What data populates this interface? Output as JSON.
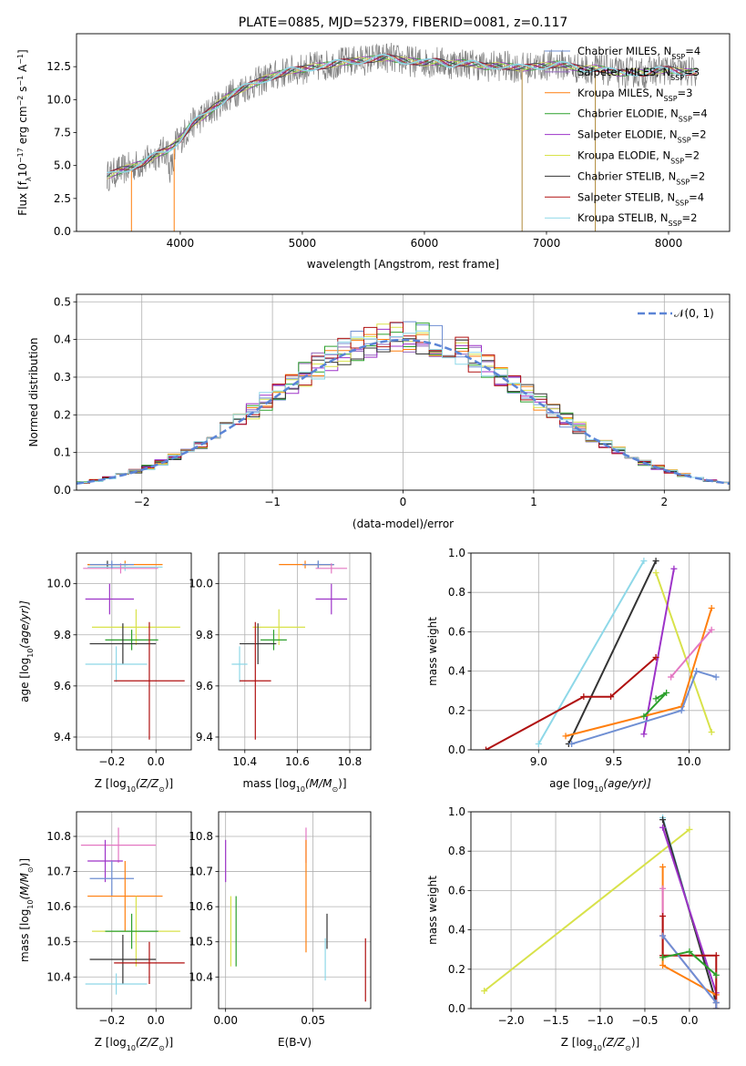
{
  "chart_data": [
    {
      "id": "spectrum",
      "type": "line",
      "title": "PLATE=0885, MJD=52379, FIBERID=0081, z=0.117",
      "xlabel": "wavelength [Angstrom, rest frame]",
      "ylabel": "Flux [f",
      "ylabel_sub": "λ",
      "ylabel_mid": "10",
      "ylabel_exp": "−17",
      "ylabel_end": " erg cm",
      "ylabel_end_exp": "−2",
      "ylabel_tail": " s",
      "ylabel_tail_exp": "−1",
      "ylabel_last": " A",
      "ylabel_last_exp": "−1",
      "ylabel_close": "]",
      "xlim": [
        3150,
        8500
      ],
      "ylim": [
        0,
        15
      ],
      "xticks": [
        4000,
        5000,
        6000,
        7000,
        8000
      ],
      "yticks": [
        0.0,
        2.5,
        5.0,
        7.5,
        10.0,
        12.5
      ],
      "continuum": {
        "x": [
          3400,
          3500,
          3600,
          3700,
          3800,
          3900,
          4000,
          4100,
          4200,
          4300,
          4400,
          4500,
          4600,
          4700,
          4800,
          4900,
          5000,
          5100,
          5200,
          5300,
          5400,
          5500,
          5600,
          5700,
          5800,
          5900,
          6000,
          6100,
          6200,
          6300,
          6400,
          6500,
          6600,
          6700,
          6800,
          6900,
          7000,
          7100,
          7200,
          7300,
          7400,
          7500,
          7600,
          7700,
          7800,
          7900,
          8000,
          8100,
          8230
        ],
        "y": [
          4.2,
          4.6,
          4.9,
          5.2,
          5.8,
          6.2,
          7.0,
          8.2,
          8.8,
          9.6,
          10.3,
          10.8,
          11.2,
          11.6,
          11.9,
          12.2,
          12.3,
          12.5,
          12.6,
          12.8,
          12.9,
          13.0,
          13.1,
          13.2,
          13.0,
          12.9,
          12.8,
          12.9,
          12.7,
          12.8,
          12.7,
          12.5,
          12.6,
          12.5,
          12.4,
          12.5,
          12.6,
          12.7,
          12.5,
          12.3,
          12.4,
          12.2,
          12.0,
          12.1,
          12.0,
          12.2,
          12.3,
          12.1,
          12.1
        ]
      },
      "legend_placement": "right",
      "legend": [
        {
          "label": "Chabrier MILES, N",
          "sub": "SSP",
          "tail": "=4",
          "color": "#6f8fd3"
        },
        {
          "label": "Salpeter MILES, N",
          "sub": "SSP",
          "tail": "=3",
          "color": "#9467bd"
        },
        {
          "label": "Kroupa MILES, N",
          "sub": "SSP",
          "tail": "=3",
          "color": "#ff7f0e"
        },
        {
          "label": "Chabrier ELODIE, N",
          "sub": "SSP",
          "tail": "=4",
          "color": "#2ca02c"
        },
        {
          "label": "Salpeter ELODIE, N",
          "sub": "SSP",
          "tail": "=2",
          "color": "#9d33c8"
        },
        {
          "label": "Kroupa ELODIE, N",
          "sub": "SSP",
          "tail": "=2",
          "color": "#d8e24a"
        },
        {
          "label": "Chabrier STELIB, N",
          "sub": "SSP",
          "tail": "=2",
          "color": "#333333"
        },
        {
          "label": "Salpeter STELIB, N",
          "sub": "SSP",
          "tail": "=4",
          "color": "#b01010"
        },
        {
          "label": "Kroupa STELIB, N",
          "sub": "SSP",
          "tail": "=2",
          "color": "#8ed8e8"
        }
      ]
    },
    {
      "id": "histogram",
      "type": "line",
      "xlabel": "(data-model)/error",
      "ylabel": "Normed distribution",
      "xlim": [
        -2.5,
        2.5
      ],
      "ylim": [
        0,
        0.52
      ],
      "xticks": [
        -2,
        -1,
        0,
        1,
        2
      ],
      "xtick_labels": [
        "−2",
        "−1",
        "0",
        "1",
        "2"
      ],
      "yticks": [
        0.0,
        0.1,
        0.2,
        0.3,
        0.4,
        0.5
      ],
      "ytick_labels": [
        "0.0",
        "0.1",
        "0.2",
        "0.3",
        "0.4",
        "0.5"
      ],
      "gaussian_label": "𝒩(0, 1)",
      "gaussian_color": "#5b84d6"
    },
    {
      "id": "age_vs_Z",
      "type": "scatter",
      "xlabel": "Z [log",
      "xlabel_sub": "10",
      "xlabel_tail": "(Z/Z",
      "xlabel_sun": "⊙",
      "xlabel_end": ")]",
      "ylabel": "age  [log",
      "ylabel_sub": "10",
      "ylabel_tail": "(age/yr)]",
      "xlim": [
        -0.36,
        0.16
      ],
      "ylim": [
        9.35,
        10.12
      ],
      "xticks": [
        -0.2,
        0.0
      ],
      "xtick_labels": [
        "−0.2",
        "0.0"
      ],
      "yticks": [
        9.4,
        9.6,
        9.8,
        10.0
      ],
      "ytick_labels": [
        "9.4",
        "9.6",
        "9.8",
        "10.0"
      ],
      "points": [
        {
          "x": -0.22,
          "y": 10.075,
          "xerr": 0.09,
          "yerr": 0.015,
          "color": "#333333"
        },
        {
          "x": -0.14,
          "y": 10.075,
          "xerr": 0.17,
          "yerr": 0.015,
          "color": "#ff7f0e"
        },
        {
          "x": -0.14,
          "y": 10.065,
          "xerr": 0.17,
          "yerr": 0.015,
          "color": "#8ed8e8"
        },
        {
          "x": -0.16,
          "y": 10.06,
          "xerr": 0.17,
          "yerr": 0.02,
          "color": "#e377c2"
        },
        {
          "x": -0.2,
          "y": 10.075,
          "xerr": 0.1,
          "yerr": 0.015,
          "color": "#6f8fd3"
        },
        {
          "x": -0.21,
          "y": 9.94,
          "xerr": 0.11,
          "yerr": 0.06,
          "color": "#9d33c8"
        },
        {
          "x": -0.09,
          "y": 9.83,
          "xerr": 0.2,
          "yerr": 0.07,
          "color": "#d8e24a"
        },
        {
          "x": -0.11,
          "y": 9.78,
          "xerr": 0.12,
          "yerr": 0.04,
          "color": "#2ca02c"
        },
        {
          "x": -0.15,
          "y": 9.765,
          "xerr": 0.15,
          "yerr": 0.08,
          "color": "#333333"
        },
        {
          "x": -0.18,
          "y": 9.685,
          "xerr": 0.14,
          "yerr": 0.07,
          "color": "#8ed8e8"
        },
        {
          "x": -0.03,
          "y": 9.62,
          "xerr": 0.16,
          "yerr": 0.23,
          "color": "#b01010"
        }
      ]
    },
    {
      "id": "age_vs_mass",
      "type": "scatter",
      "xlabel": "mass [log",
      "xlabel_sub": "10",
      "xlabel_tail": "(M/M",
      "xlabel_sun": "⊙",
      "xlabel_end": ")]",
      "xlim": [
        10.3,
        10.88
      ],
      "ylim": [
        9.35,
        10.12
      ],
      "xticks": [
        10.4,
        10.6,
        10.8
      ],
      "xtick_labels": [
        "10.4",
        "10.6",
        "10.8"
      ],
      "yticks": [
        9.4,
        9.6,
        9.8,
        10.0
      ],
      "ytick_labels": [
        "9.4",
        "9.6",
        "9.8",
        "10.0"
      ],
      "points": [
        {
          "x": 10.68,
          "y": 10.075,
          "xerr": 0.06,
          "yerr": 0.015,
          "color": "#333333"
        },
        {
          "x": 10.63,
          "y": 10.075,
          "xerr": 0.1,
          "yerr": 0.015,
          "color": "#ff7f0e"
        },
        {
          "x": 10.68,
          "y": 10.075,
          "xerr": 0.06,
          "yerr": 0.015,
          "color": "#6f8fd3"
        },
        {
          "x": 10.73,
          "y": 10.06,
          "xerr": 0.06,
          "yerr": 0.02,
          "color": "#e377c2"
        },
        {
          "x": 10.73,
          "y": 9.94,
          "xerr": 0.06,
          "yerr": 0.06,
          "color": "#9d33c8"
        },
        {
          "x": 10.53,
          "y": 9.83,
          "xerr": 0.1,
          "yerr": 0.07,
          "color": "#d8e24a"
        },
        {
          "x": 10.51,
          "y": 9.78,
          "xerr": 0.05,
          "yerr": 0.04,
          "color": "#2ca02c"
        },
        {
          "x": 10.45,
          "y": 9.765,
          "xerr": 0.07,
          "yerr": 0.08,
          "color": "#333333"
        },
        {
          "x": 10.38,
          "y": 9.685,
          "xerr": 0.03,
          "yerr": 0.07,
          "color": "#8ed8e8"
        },
        {
          "x": 10.44,
          "y": 9.62,
          "xerr": 0.06,
          "yerr": 0.23,
          "color": "#b01010"
        }
      ]
    },
    {
      "id": "weight_vs_age",
      "type": "line",
      "xlabel": "age  [log",
      "xlabel_sub": "10",
      "xlabel_tail": "(age/yr)]",
      "ylabel": "mass weight",
      "xlim": [
        8.55,
        10.27
      ],
      "ylim": [
        0,
        1
      ],
      "xticks": [
        9.0,
        9.5,
        10.0
      ],
      "xtick_labels": [
        "9.0",
        "9.5",
        "10.0"
      ],
      "yticks": [
        0.0,
        0.2,
        0.4,
        0.6,
        0.8,
        1.0
      ],
      "ytick_labels": [
        "0.0",
        "0.2",
        "0.4",
        "0.6",
        "0.8",
        "1.0"
      ],
      "series": [
        {
          "color": "#8ed8e8",
          "x": [
            9.0,
            9.7
          ],
          "y": [
            0.03,
            0.96
          ]
        },
        {
          "color": "#333333",
          "x": [
            9.2,
            9.78
          ],
          "y": [
            0.03,
            0.96
          ]
        },
        {
          "color": "#d8e24a",
          "x": [
            9.78,
            10.15
          ],
          "y": [
            0.9,
            0.09
          ]
        },
        {
          "color": "#9d33c8",
          "x": [
            9.7,
            9.9
          ],
          "y": [
            0.08,
            0.92
          ]
        },
        {
          "color": "#b01010",
          "x": [
            8.65,
            9.3,
            9.48,
            9.78
          ],
          "y": [
            0.0,
            0.27,
            0.27,
            0.47
          ]
        },
        {
          "color": "#ff7f0e",
          "x": [
            9.18,
            9.95,
            10.15
          ],
          "y": [
            0.07,
            0.22,
            0.72
          ]
        },
        {
          "color": "#e377c2",
          "x": [
            9.88,
            10.15
          ],
          "y": [
            0.37,
            0.61
          ]
        },
        {
          "color": "#6f8fd3",
          "x": [
            9.22,
            9.95,
            10.05,
            10.18
          ],
          "y": [
            0.03,
            0.2,
            0.4,
            0.37
          ]
        },
        {
          "color": "#2ca02c",
          "x": [
            9.7,
            9.85,
            9.78
          ],
          "y": [
            0.17,
            0.29,
            0.26
          ]
        }
      ]
    },
    {
      "id": "mass_vs_Z",
      "type": "scatter",
      "xlabel": "Z [log",
      "xlabel_sub": "10",
      "xlabel_tail": "(Z/Z",
      "xlabel_sun": "⊙",
      "xlabel_end": ")]",
      "ylabel": "mass [log",
      "ylabel_sub": "10",
      "ylabel_tail": "(M/M",
      "ylabel_sun": "⊙",
      "ylabel_end": ")]",
      "xlim": [
        -0.36,
        0.16
      ],
      "ylim": [
        10.31,
        10.87
      ],
      "xticks": [
        -0.2,
        0.0
      ],
      "xtick_labels": [
        "−0.2",
        "0.0"
      ],
      "yticks": [
        10.4,
        10.5,
        10.6,
        10.7,
        10.8
      ],
      "ytick_labels": [
        "10.4",
        "10.5",
        "10.6",
        "10.7",
        "10.8"
      ],
      "points": [
        {
          "x": -0.17,
          "y": 10.775,
          "xerr": 0.17,
          "yerr": 0.05,
          "color": "#e377c2"
        },
        {
          "x": -0.23,
          "y": 10.73,
          "xerr": 0.08,
          "yerr": 0.06,
          "color": "#9d33c8"
        },
        {
          "x": -0.2,
          "y": 10.68,
          "xerr": 0.1,
          "yerr": 0.05,
          "color": "#6f8fd3"
        },
        {
          "x": -0.14,
          "y": 10.63,
          "xerr": 0.17,
          "yerr": 0.1,
          "color": "#ff7f0e"
        },
        {
          "x": -0.09,
          "y": 10.53,
          "xerr": 0.2,
          "yerr": 0.1,
          "color": "#d8e24a"
        },
        {
          "x": -0.11,
          "y": 10.53,
          "xerr": 0.12,
          "yerr": 0.05,
          "color": "#2ca02c"
        },
        {
          "x": -0.15,
          "y": 10.45,
          "xerr": 0.15,
          "yerr": 0.07,
          "color": "#333333"
        },
        {
          "x": -0.03,
          "y": 10.44,
          "xerr": 0.16,
          "yerr": 0.06,
          "color": "#b01010"
        },
        {
          "x": -0.18,
          "y": 10.38,
          "xerr": 0.14,
          "yerr": 0.03,
          "color": "#8ed8e8"
        }
      ]
    },
    {
      "id": "mass_vs_EBV",
      "type": "scatter",
      "xlabel": "E(B-V)",
      "xlim": [
        -0.004,
        0.083
      ],
      "ylim": [
        10.31,
        10.87
      ],
      "xticks": [
        0.0,
        0.05
      ],
      "xtick_labels": [
        "0.00",
        "0.05"
      ],
      "yticks": [
        10.4,
        10.5,
        10.6,
        10.7,
        10.8
      ],
      "ytick_labels": [
        "10.4",
        "10.5",
        "10.6",
        "10.7",
        "10.8"
      ],
      "points": [
        {
          "x": 0.0,
          "y": 10.73,
          "yerr": 0.06,
          "color": "#9d33c8"
        },
        {
          "x": 0.003,
          "y": 10.53,
          "yerr": 0.1,
          "color": "#d8e24a"
        },
        {
          "x": 0.006,
          "y": 10.53,
          "yerr": 0.1,
          "color": "#2ca02c"
        },
        {
          "x": 0.046,
          "y": 10.775,
          "yerr": 0.05,
          "color": "#e377c2"
        },
        {
          "x": 0.046,
          "y": 10.63,
          "yerr": 0.16,
          "color": "#ff7f0e"
        },
        {
          "x": 0.057,
          "y": 10.45,
          "yerr": 0.06,
          "color": "#8ed8e8"
        },
        {
          "x": 0.058,
          "y": 10.53,
          "yerr": 0.05,
          "color": "#333333"
        },
        {
          "x": 0.08,
          "y": 10.42,
          "yerr": 0.09,
          "color": "#b01010"
        }
      ]
    },
    {
      "id": "weight_vs_Z",
      "type": "line",
      "xlabel": "Z [log",
      "xlabel_sub": "10",
      "xlabel_tail": "(Z/Z",
      "xlabel_sun": "⊙",
      "xlabel_end": ")]",
      "ylabel": "mass weight",
      "xlim": [
        -2.45,
        0.45
      ],
      "ylim": [
        0,
        1
      ],
      "xticks": [
        -2.0,
        -1.5,
        -1.0,
        -0.5,
        0.0
      ],
      "xtick_labels": [
        "−2.0",
        "−1.5",
        "−1.0",
        "−0.5",
        "0.0"
      ],
      "yticks": [
        0.0,
        0.2,
        0.4,
        0.6,
        0.8,
        1.0
      ],
      "ytick_labels": [
        "0.0",
        "0.2",
        "0.4",
        "0.6",
        "0.8",
        "1.0"
      ],
      "series": [
        {
          "color": "#d8e24a",
          "x": [
            -2.3,
            0.0
          ],
          "y": [
            0.09,
            0.91
          ]
        },
        {
          "color": "#8ed8e8",
          "x": [
            -0.3,
            0.3
          ],
          "y": [
            0.97,
            0.03
          ]
        },
        {
          "color": "#333333",
          "x": [
            -0.3,
            0.3
          ],
          "y": [
            0.96,
            0.03
          ]
        },
        {
          "color": "#9d33c8",
          "x": [
            -0.3,
            0.3
          ],
          "y": [
            0.92,
            0.08
          ]
        },
        {
          "color": "#ff7f0e",
          "x": [
            -0.3,
            -0.3,
            0.3
          ],
          "y": [
            0.72,
            0.22,
            0.07
          ]
        },
        {
          "color": "#e377c2",
          "x": [
            -0.3,
            -0.3,
            0.3
          ],
          "y": [
            0.61,
            0.37,
            0.03
          ]
        },
        {
          "color": "#b01010",
          "x": [
            -0.3,
            -0.3,
            0.3,
            0.3
          ],
          "y": [
            0.47,
            0.27,
            0.27,
            0.0
          ]
        },
        {
          "color": "#6f8fd3",
          "x": [
            -0.3,
            0.3,
            0.3
          ],
          "y": [
            0.37,
            0.03,
            0.0
          ]
        },
        {
          "color": "#2ca02c",
          "x": [
            -0.3,
            0.0,
            0.3
          ],
          "y": [
            0.26,
            0.29,
            0.17
          ]
        }
      ]
    }
  ]
}
